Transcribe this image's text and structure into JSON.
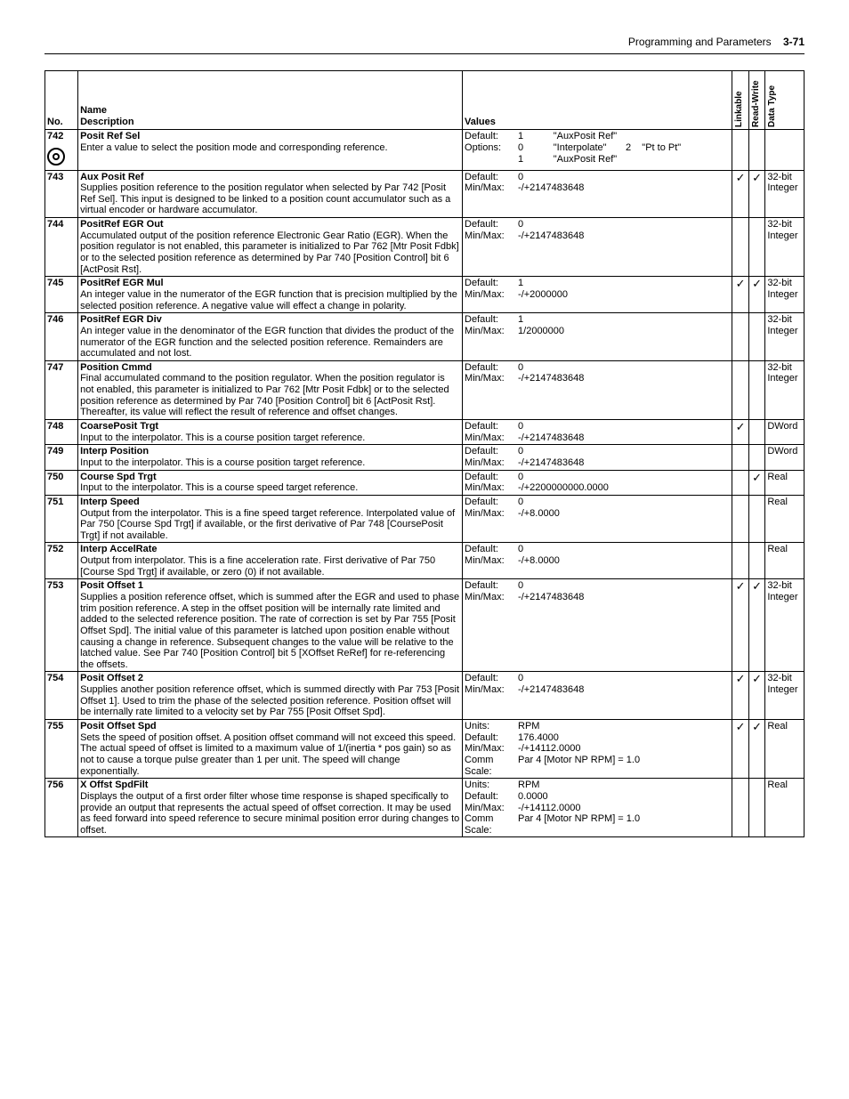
{
  "header": {
    "section": "Programming and Parameters",
    "page": "3-71"
  },
  "columns": {
    "no": "No.",
    "name": "Name",
    "description": "Description",
    "values": "Values",
    "linkable": "Linkable",
    "readwrite": "Read-Write",
    "datatype": "Data Type"
  },
  "rows": [
    {
      "no": "742",
      "icon": true,
      "name": "Posit Ref Sel",
      "desc": "Enter a value to select the position mode and corresponding reference.",
      "values": [
        {
          "lab": "Default:",
          "val": "1           \"AuxPosit Ref\""
        },
        {
          "lab": "Options:",
          "val": "0           \"Interpolate\"       2    \"Pt to Pt\""
        },
        {
          "lab": "",
          "val": "1           \"AuxPosit Ref\""
        }
      ],
      "linkable": "",
      "rw": "",
      "dtype": ""
    },
    {
      "no": "743",
      "name": "Aux Posit Ref",
      "desc": "Supplies position reference to the position regulator when selected by Par 742 [Posit Ref Sel]. This input is designed to be linked to a position count accumulator such as a virtual encoder or hardware accumulator.",
      "values": [
        {
          "lab": "Default:",
          "val": "0"
        },
        {
          "lab": "Min/Max:",
          "val": "-/+2147483648"
        }
      ],
      "linkable": "✓",
      "rw": "✓",
      "dtype": "32-bit Integer"
    },
    {
      "no": "744",
      "name": "PositRef EGR Out",
      "desc": "Accumulated output of the position reference Electronic Gear Ratio (EGR). When the position regulator is not enabled, this parameter is initialized to Par 762 [Mtr Posit Fdbk] or to the selected position reference as determined by Par 740 [Position Control] bit 6 [ActPosit Rst].",
      "values": [
        {
          "lab": "Default:",
          "val": "0"
        },
        {
          "lab": "Min/Max:",
          "val": "-/+2147483648"
        }
      ],
      "linkable": "",
      "rw": "",
      "dtype": "32-bit Integer"
    },
    {
      "no": "745",
      "name": "PositRef EGR Mul",
      "desc": "An integer value in the numerator of the EGR function that is precision multiplied by the selected position reference. A negative value will effect a change in polarity.",
      "values": [
        {
          "lab": "Default:",
          "val": "1"
        },
        {
          "lab": "Min/Max:",
          "val": "-/+2000000"
        }
      ],
      "linkable": "✓",
      "rw": "✓",
      "dtype": "32-bit Integer"
    },
    {
      "no": "746",
      "name": "PositRef EGR Div",
      "desc": "An integer value in the denominator of the EGR function that divides the product of the numerator of the EGR function and the selected position reference. Remainders are accumulated and not lost.",
      "values": [
        {
          "lab": "Default:",
          "val": "1"
        },
        {
          "lab": "Min/Max:",
          "val": "1/2000000"
        }
      ],
      "linkable": "",
      "rw": "",
      "dtype": "32-bit Integer"
    },
    {
      "no": "747",
      "name": "Position Cmmd",
      "desc": "Final accumulated command to the position regulator. When the position regulator is not enabled, this parameter is initialized to Par 762 [Mtr Posit Fdbk] or to the selected position reference as determined by Par 740 [Position Control] bit 6 [ActPosit Rst]. Thereafter, its value will reflect the result of reference and offset changes.",
      "values": [
        {
          "lab": "Default:",
          "val": "0"
        },
        {
          "lab": "Min/Max:",
          "val": "-/+2147483648"
        }
      ],
      "linkable": "",
      "rw": "",
      "dtype": "32-bit Integer"
    },
    {
      "no": "748",
      "name": "CoarsePosit Trgt",
      "desc": "Input to the interpolator. This is a course position target reference.",
      "values": [
        {
          "lab": "Default:",
          "val": "0"
        },
        {
          "lab": "Min/Max:",
          "val": "-/+2147483648"
        }
      ],
      "linkable": "✓",
      "rw": "",
      "dtype": "DWord"
    },
    {
      "no": "749",
      "name": "Interp Position",
      "desc": "Input to the interpolator. This is a course position target reference.",
      "values": [
        {
          "lab": "Default:",
          "val": "0"
        },
        {
          "lab": "Min/Max:",
          "val": "-/+2147483648"
        }
      ],
      "linkable": "",
      "rw": "",
      "dtype": "DWord"
    },
    {
      "no": "750",
      "name": "Course Spd Trgt",
      "desc": "Input to the interpolator. This is a course speed target reference.",
      "values": [
        {
          "lab": "Default:",
          "val": "0"
        },
        {
          "lab": "Min/Max:",
          "val": "-/+2200000000.0000"
        }
      ],
      "linkable": "",
      "rw": "✓",
      "dtype": "Real"
    },
    {
      "no": "751",
      "name": "Interp Speed",
      "desc": "Output from the interpolator. This is a fine speed target reference. Interpolated value of Par 750 [Course Spd Trgt] if available, or the first derivative of Par 748 [CoursePosit Trgt] if not available.",
      "values": [
        {
          "lab": "Default:",
          "val": "0"
        },
        {
          "lab": "Min/Max:",
          "val": "-/+8.0000"
        }
      ],
      "linkable": "",
      "rw": "",
      "dtype": "Real"
    },
    {
      "no": "752",
      "name": "Interp AccelRate",
      "desc": "Output from interpolator. This is a fine acceleration rate. First derivative of Par 750 [Course Spd Trgt] if available, or zero (0) if not available.",
      "values": [
        {
          "lab": "Default:",
          "val": "0"
        },
        {
          "lab": "Min/Max:",
          "val": "-/+8.0000"
        }
      ],
      "linkable": "",
      "rw": "",
      "dtype": "Real"
    },
    {
      "no": "753",
      "name": "Posit Offset 1",
      "desc": "Supplies a position reference offset, which is summed after the EGR and used to phase trim position reference. A step in the offset position will be internally rate limited and added to the selected reference position. The rate of correction is set by Par 755 [Posit Offset Spd]. The initial value of  this parameter is latched upon position enable without causing a change in reference. Subsequent changes to the value will be relative to the latched value. See Par 740 [Position Control] bit 5 [XOffset ReRef] for re-referencing the offsets.",
      "values": [
        {
          "lab": "Default:",
          "val": "0"
        },
        {
          "lab": "Min/Max:",
          "val": "-/+2147483648"
        }
      ],
      "linkable": "✓",
      "rw": "✓",
      "dtype": "32-bit Integer"
    },
    {
      "no": "754",
      "name": "Posit Offset 2",
      "desc": "Supplies another position reference offset, which is summed directly with Par 753 [Posit Offset 1]. Used to trim the phase of the selected position reference. Position offset will be internally rate limited to a velocity set by Par 755 [Posit Offset Spd].",
      "values": [
        {
          "lab": "Default:",
          "val": "0"
        },
        {
          "lab": "Min/Max:",
          "val": "-/+2147483648"
        }
      ],
      "linkable": "✓",
      "rw": "✓",
      "dtype": "32-bit Integer"
    },
    {
      "no": "755",
      "name": "Posit Offset Spd",
      "desc": "Sets the speed of position offset. A position offset command will not exceed this speed. The actual speed of offset is limited to a maximum value of 1/(inertia * pos gain) so as not to cause a torque pulse greater than 1 per unit. The speed will change exponentially.",
      "values": [
        {
          "lab": "Units:",
          "val": "RPM"
        },
        {
          "lab": "Default:",
          "val": "176.4000"
        },
        {
          "lab": "Min/Max:",
          "val": "-/+14112.0000"
        },
        {
          "lab": "Comm Scale:",
          "val": "Par 4 [Motor NP RPM] = 1.0"
        }
      ],
      "linkable": "✓",
      "rw": "✓",
      "dtype": "Real"
    },
    {
      "no": "756",
      "name": "X Offst SpdFilt",
      "desc": "Displays the output of a first order filter whose time response is shaped specifically to provide an output that represents the actual speed of offset correction. It may be used as feed forward into speed reference to secure minimal position error during changes to offset.",
      "values": [
        {
          "lab": "Units:",
          "val": "RPM"
        },
        {
          "lab": "Default:",
          "val": "0.0000"
        },
        {
          "lab": "Min/Max:",
          "val": "-/+14112.0000"
        },
        {
          "lab": "Comm Scale:",
          "val": "Par 4 [Motor NP RPM] = 1.0"
        }
      ],
      "linkable": "",
      "rw": "",
      "dtype": "Real"
    }
  ]
}
